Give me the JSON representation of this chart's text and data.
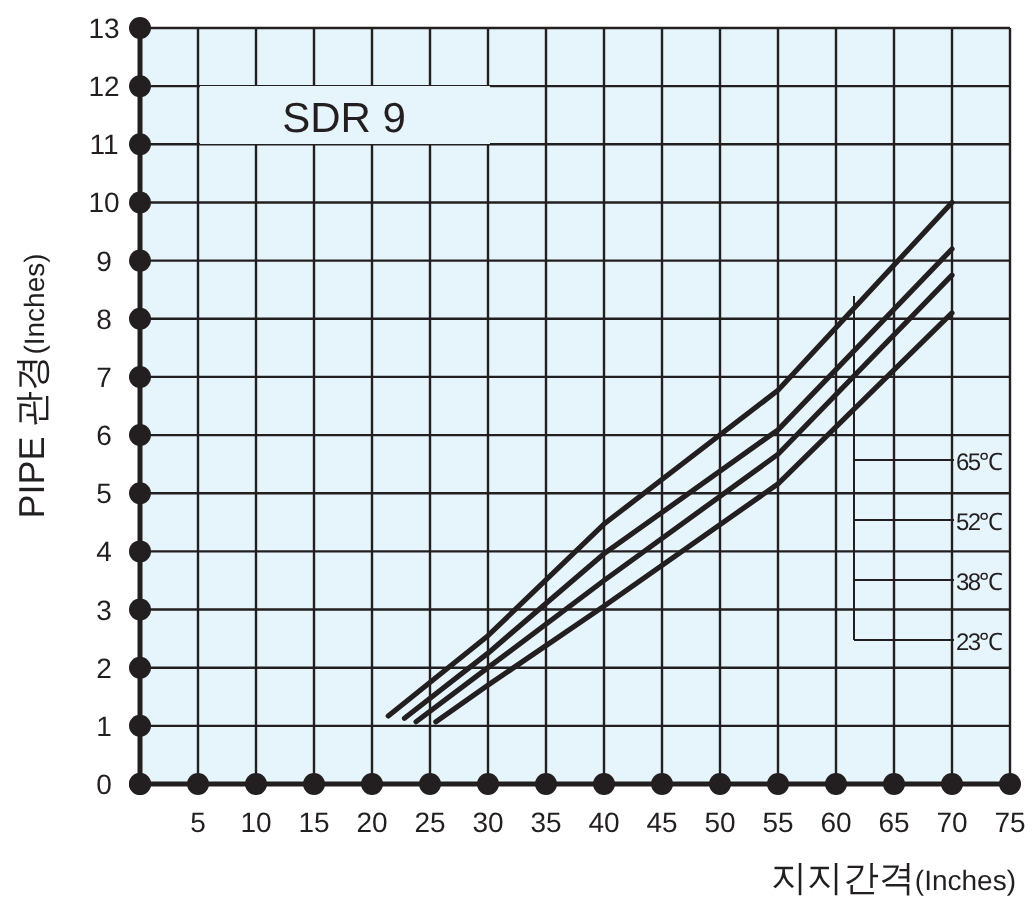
{
  "chart_data": {
    "type": "line",
    "xlabel": "지지간격(Inches)",
    "ylabel": "PIPE 관경(Inches)",
    "annotations": [
      "SDR 9",
      "65℃",
      "52℃",
      "38℃",
      "23℃"
    ],
    "series": [
      {
        "color": "#231f20",
        "x": [
          21.4,
          30,
          40,
          55,
          70
        ],
        "values": [
          1.17,
          2.55,
          4.47,
          6.77,
          10.0
        ]
      },
      {
        "color": "#231f20",
        "x": [
          22.8,
          30,
          40,
          55,
          70
        ],
        "values": [
          1.13,
          2.25,
          3.96,
          6.09,
          9.2
        ]
      },
      {
        "color": "#231f20",
        "x": [
          23.8,
          30,
          40,
          55,
          70
        ],
        "values": [
          1.07,
          2.0,
          3.5,
          5.67,
          8.75
        ]
      },
      {
        "color": "#231f20",
        "x": [
          25.5,
          30,
          40,
          55,
          70
        ],
        "values": [
          1.07,
          1.7,
          3.06,
          5.16,
          8.1
        ]
      }
    ],
    "xlim": [
      0,
      75
    ],
    "ylim": [
      0,
      13
    ],
    "xticks": [
      {
        "value": 0,
        "label": null
      },
      5,
      10,
      15,
      20,
      25,
      30,
      35,
      40,
      45,
      50,
      55,
      60,
      65,
      70,
      75
    ],
    "yticks": [
      0,
      1,
      2,
      3,
      4,
      5,
      6,
      7,
      8,
      9,
      10,
      11,
      12,
      13
    ],
    "grid": true
  }
}
